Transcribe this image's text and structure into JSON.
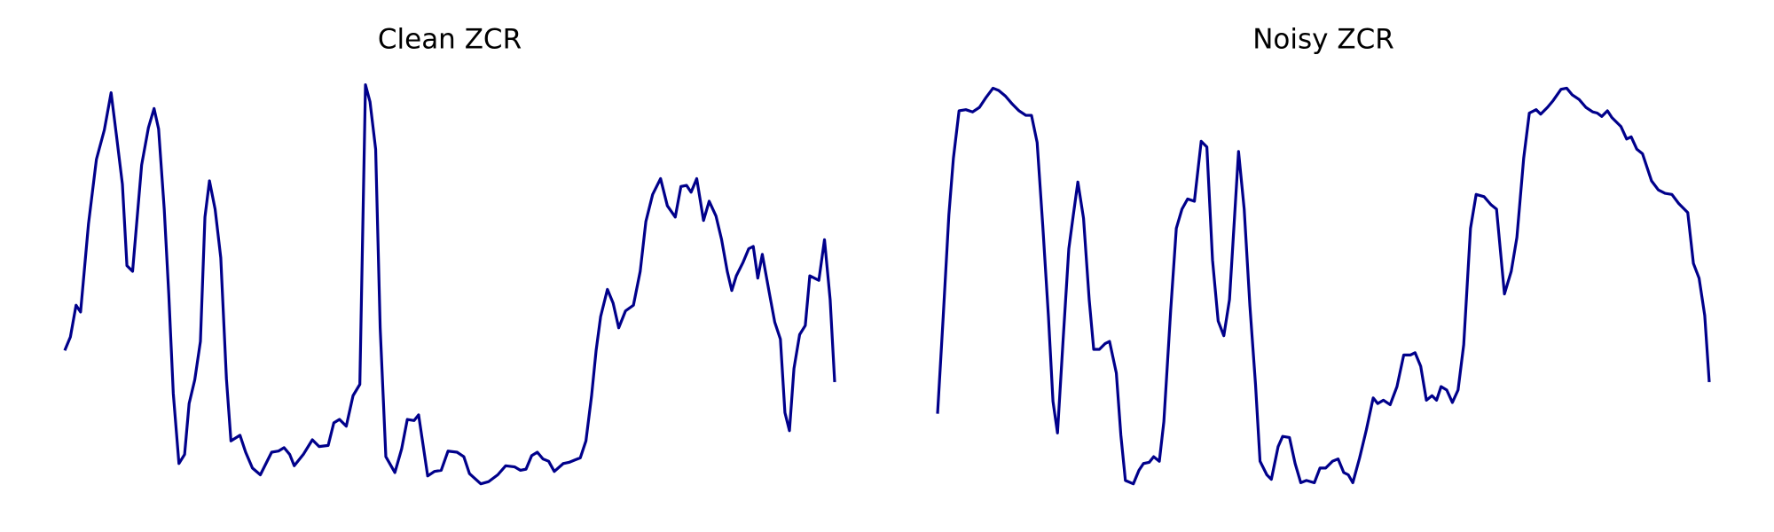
{
  "chart_data": [
    {
      "type": "line",
      "title": "Clean ZCR",
      "color": "#00008b",
      "xlim": [
        0,
        681
      ],
      "ylim": [
        0,
        380
      ],
      "x": [
        0,
        5,
        10,
        14,
        21,
        28,
        35,
        41,
        46,
        51,
        55,
        60,
        68,
        74,
        79,
        83,
        88,
        92,
        96,
        101,
        106,
        110,
        115,
        120,
        124,
        128,
        133,
        138,
        143,
        147,
        155,
        160,
        166,
        173,
        183,
        189,
        194,
        199,
        203,
        211,
        219,
        225,
        233,
        238,
        243,
        249,
        255,
        261,
        266,
        270,
        275,
        279,
        284,
        292,
        298,
        303,
        309,
        313,
        321,
        327,
        333,
        339,
        347,
        353,
        358,
        368,
        375,
        383,
        390,
        398,
        403,
        408,
        413,
        418,
        423,
        428,
        433,
        441,
        446,
        451,
        456,
        461,
        466,
        470,
        474,
        480,
        485,
        490,
        496,
        503,
        509,
        514,
        520,
        527,
        533,
        540,
        545,
        550,
        554,
        559,
        565,
        570,
        576,
        581,
        586,
        590,
        594,
        600,
        605,
        609,
        613,
        617,
        623,
        628,
        633,
        637,
        641,
        645,
        650,
        655,
        659,
        667,
        672,
        677,
        681
      ],
      "values": [
        130,
        142,
        170,
        164,
        242,
        299,
        325,
        358,
        318,
        277,
        205,
        200,
        294,
        327,
        344,
        326,
        255,
        180,
        92,
        30,
        38,
        83,
        104,
        138,
        248,
        280,
        255,
        212,
        105,
        50,
        55,
        40,
        26,
        20,
        40,
        41,
        44,
        38,
        28,
        38,
        51,
        45,
        46,
        66,
        69,
        63,
        90,
        100,
        365,
        350,
        308,
        150,
        36,
        22,
        43,
        69,
        68,
        73,
        19,
        23,
        24,
        41,
        40,
        36,
        21,
        12,
        14,
        20,
        28,
        27,
        24,
        25,
        37,
        40,
        34,
        32,
        23,
        30,
        31,
        33,
        35,
        50,
        90,
        130,
        160,
        184,
        172,
        150,
        165,
        170,
        200,
        244,
        268,
        282,
        258,
        248,
        275,
        276,
        270,
        282,
        245,
        262,
        249,
        228,
        200,
        183,
        196,
        208,
        220,
        222,
        194,
        215,
        182,
        155,
        140,
        75,
        59,
        114,
        144,
        152,
        196,
        192,
        228,
        175,
        102
      ]
    },
    {
      "type": "line",
      "title": "Noisy ZCR",
      "color": "#00008b",
      "xlim": [
        0,
        682
      ],
      "ylim": [
        0,
        380
      ],
      "x": [
        0,
        5,
        10,
        14,
        19,
        25,
        31,
        37,
        43,
        49,
        54,
        60,
        66,
        72,
        78,
        83,
        88,
        93,
        98,
        102,
        106,
        111,
        116,
        120,
        124,
        129,
        134,
        138,
        143,
        148,
        152,
        158,
        162,
        166,
        173,
        178,
        182,
        187,
        191,
        196,
        200,
        206,
        211,
        216,
        221,
        227,
        233,
        238,
        243,
        248,
        253,
        258,
        266,
        271,
        276,
        281,
        285,
        291,
        295,
        301,
        305,
        311,
        316,
        321,
        326,
        333,
        338,
        343,
        349,
        354,
        359,
        363,
        367,
        373,
        379,
        385,
        389,
        394,
        400,
        406,
        412,
        418,
        422,
        427,
        432,
        437,
        441,
        445,
        450,
        455,
        460,
        465,
        471,
        476,
        483,
        489,
        494,
        501,
        507,
        512,
        518,
        523,
        529,
        533,
        539,
        544,
        551,
        556,
        561,
        567,
        573,
        579,
        583,
        587,
        592,
        596,
        604,
        609,
        613,
        618,
        623,
        631,
        637,
        643,
        649,
        655,
        663,
        668,
        673,
        678,
        682
      ],
      "values": [
        74,
        160,
        250,
        300,
        342,
        343,
        341,
        345,
        354,
        362,
        360,
        355,
        348,
        342,
        338,
        338,
        314,
        240,
        160,
        85,
        57,
        140,
        220,
        250,
        279,
        247,
        175,
        131,
        131,
        136,
        138,
        110,
        55,
        15,
        12,
        24,
        30,
        31,
        36,
        32,
        67,
        165,
        238,
        255,
        264,
        262,
        315,
        310,
        210,
        156,
        143,
        175,
        306,
        255,
        170,
        100,
        32,
        20,
        16,
        45,
        54,
        53,
        30,
        13,
        15,
        13,
        26,
        26,
        32,
        34,
        22,
        20,
        13,
        35,
        60,
        88,
        83,
        86,
        82,
        98,
        126,
        126,
        128,
        116,
        86,
        90,
        86,
        98,
        95,
        84,
        95,
        135,
        238,
        268,
        266,
        259,
        255,
        180,
        200,
        230,
        300,
        340,
        343,
        339,
        345,
        351,
        361,
        362,
        356,
        352,
        345,
        341,
        340,
        337,
        342,
        336,
        328,
        317,
        319,
        308,
        304,
        280,
        272,
        269,
        268,
        260,
        252,
        207,
        194,
        161,
        102
      ]
    }
  ]
}
